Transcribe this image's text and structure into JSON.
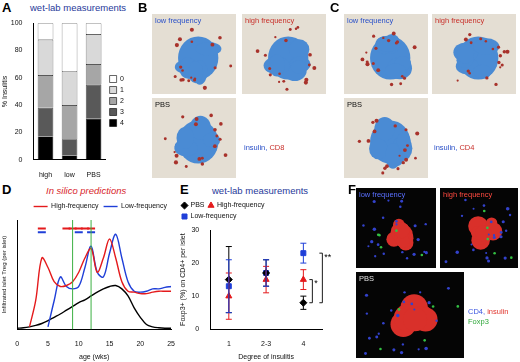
{
  "chart_data": [
    {
      "panel": "A",
      "title": "wet-lab measurements",
      "type": "bar",
      "stacked": true,
      "grid": false,
      "legend": "right",
      "categories": [
        "high",
        "low",
        "PBS"
      ],
      "series": [
        {
          "name": "0",
          "color": "#ffffff",
          "values": [
            12,
            35,
            8
          ]
        },
        {
          "name": "1",
          "color": "#d9d9d9",
          "values": [
            26,
            25,
            22
          ]
        },
        {
          "name": "2",
          "color": "#a6a6a6",
          "values": [
            24,
            25,
            15
          ]
        },
        {
          "name": "3",
          "color": "#595959",
          "values": [
            21,
            12,
            25
          ]
        },
        {
          "name": "4",
          "color": "#000000",
          "values": [
            17,
            3,
            30
          ]
        }
      ],
      "y_label": "% Insulitis",
      "ylim": [
        0,
        100
      ],
      "yticks": [
        0,
        20,
        40,
        60,
        80,
        100
      ]
    },
    {
      "panel": "D",
      "title": "In silico predictions",
      "type": "line",
      "grid": false,
      "legend": "top-right",
      "tick_labels": "x",
      "x": [
        0,
        1,
        2,
        3,
        4,
        5,
        6,
        7,
        8,
        9,
        10,
        11,
        12,
        13,
        14,
        15,
        16,
        17,
        18,
        19,
        20,
        21,
        22,
        23,
        24,
        25
      ],
      "series": [
        {
          "name": "High-frequency",
          "color": "#e41a1c",
          "type": "line",
          "values": [
            null,
            null,
            5,
            60,
            150,
            130,
            100,
            90,
            92,
            100,
            120,
            150,
            170,
            120,
            150,
            190,
            150,
            100,
            80,
            78,
            75,
            75,
            78,
            80,
            80,
            80
          ]
        },
        {
          "name": "Low-frequency",
          "color": "#1f3fd8",
          "type": "line",
          "values": [
            null,
            null,
            null,
            null,
            null,
            5,
            60,
            110,
            90,
            85,
            90,
            130,
            175,
            120,
            110,
            160,
            200,
            150,
            100,
            80,
            78,
            80,
            85,
            85,
            88,
            90
          ]
        },
        {
          "color": "#000000",
          "type": "line",
          "values": [
            2,
            3,
            5,
            8,
            12,
            18,
            25,
            32,
            40,
            48,
            56,
            62,
            70,
            78,
            85,
            90,
            92,
            85,
            70,
            45,
            25,
            10,
            5,
            3,
            2,
            2
          ]
        },
        {
          "color": "#e41a1c",
          "type": "scatter",
          "marker": "dash",
          "x": [
            4,
            8,
            9,
            10,
            11,
            12
          ],
          "values": [
            212,
            212,
            212,
            212,
            212,
            212
          ]
        },
        {
          "color": "#1f3fd8",
          "type": "scatter",
          "marker": "dash",
          "x": [
            4,
            10,
            12
          ],
          "values": [
            204,
            204,
            204
          ]
        }
      ],
      "vlines": [
        9,
        12
      ],
      "x_label": "age (wks)",
      "y_label": "Infiltrated islet Treg (per islet)",
      "xlim": [
        0,
        25
      ],
      "xticks": [
        0,
        5,
        10,
        15,
        20,
        25
      ],
      "ylim": [
        0,
        230
      ]
    },
    {
      "panel": "E",
      "title": "wet-lab measurements",
      "type": "scatter",
      "grid": false,
      "legend": "top-left",
      "categories": [
        "1",
        "2-3",
        "4"
      ],
      "series": [
        {
          "name": "PBS",
          "color": "#000000",
          "marker": "diamond",
          "values": [
            15,
            17,
            8
          ],
          "errors": [
            10,
            4,
            2
          ]
        },
        {
          "name": "High-frequency",
          "color": "#e41a1c",
          "marker": "triangle",
          "values": [
            10,
            15,
            15
          ],
          "errors": [
            7,
            4,
            3
          ]
        },
        {
          "name": "Low-frequency",
          "color": "#1f3fd8",
          "marker": "square",
          "values": [
            13,
            17,
            23
          ],
          "errors": [
            8,
            4,
            3
          ]
        }
      ],
      "annotations": [
        {
          "text": "*",
          "from": "PBS",
          "to": "High-frequency",
          "category": "4"
        },
        {
          "text": "**",
          "from": "PBS",
          "to": "Low-frequency",
          "category": "4"
        }
      ],
      "x_label": "Degree of insulitis",
      "y_label": "Foxp3+ (%) on CD4+ per islet",
      "ylim": [
        0,
        30
      ],
      "yticks": [
        0,
        10,
        20,
        30
      ]
    }
  ],
  "images": [
    {
      "panel": "B",
      "tiles": [
        {
          "label": "low frequency"
        },
        {
          "label": "high frequency"
        },
        {
          "label": "PBS"
        }
      ],
      "stains": [
        [
          {
            "text": "insulin,",
            "color": "#2a50c8"
          },
          {
            "text": "CD8",
            "color": "#c8302a"
          }
        ]
      ]
    },
    {
      "panel": "C",
      "tiles": [
        {
          "label": "low frequency"
        },
        {
          "label": "high frequency"
        },
        {
          "label": "PBS"
        }
      ],
      "stains": [
        [
          {
            "text": "insulin,",
            "color": "#2a50c8"
          },
          {
            "text": "CD4",
            "color": "#c8302a"
          }
        ]
      ]
    },
    {
      "panel": "F",
      "tiles": [
        {
          "label": "low frequency"
        },
        {
          "label": "high frequency"
        },
        {
          "label": "PBS"
        }
      ],
      "stains": [
        [
          {
            "text": "CD4,",
            "color": "#3a55e0"
          },
          {
            "text": "insulin",
            "color": "#e0352d"
          }
        ],
        [
          {
            "text": "Foxp3",
            "color": "#2fa83a"
          }
        ]
      ]
    }
  ]
}
